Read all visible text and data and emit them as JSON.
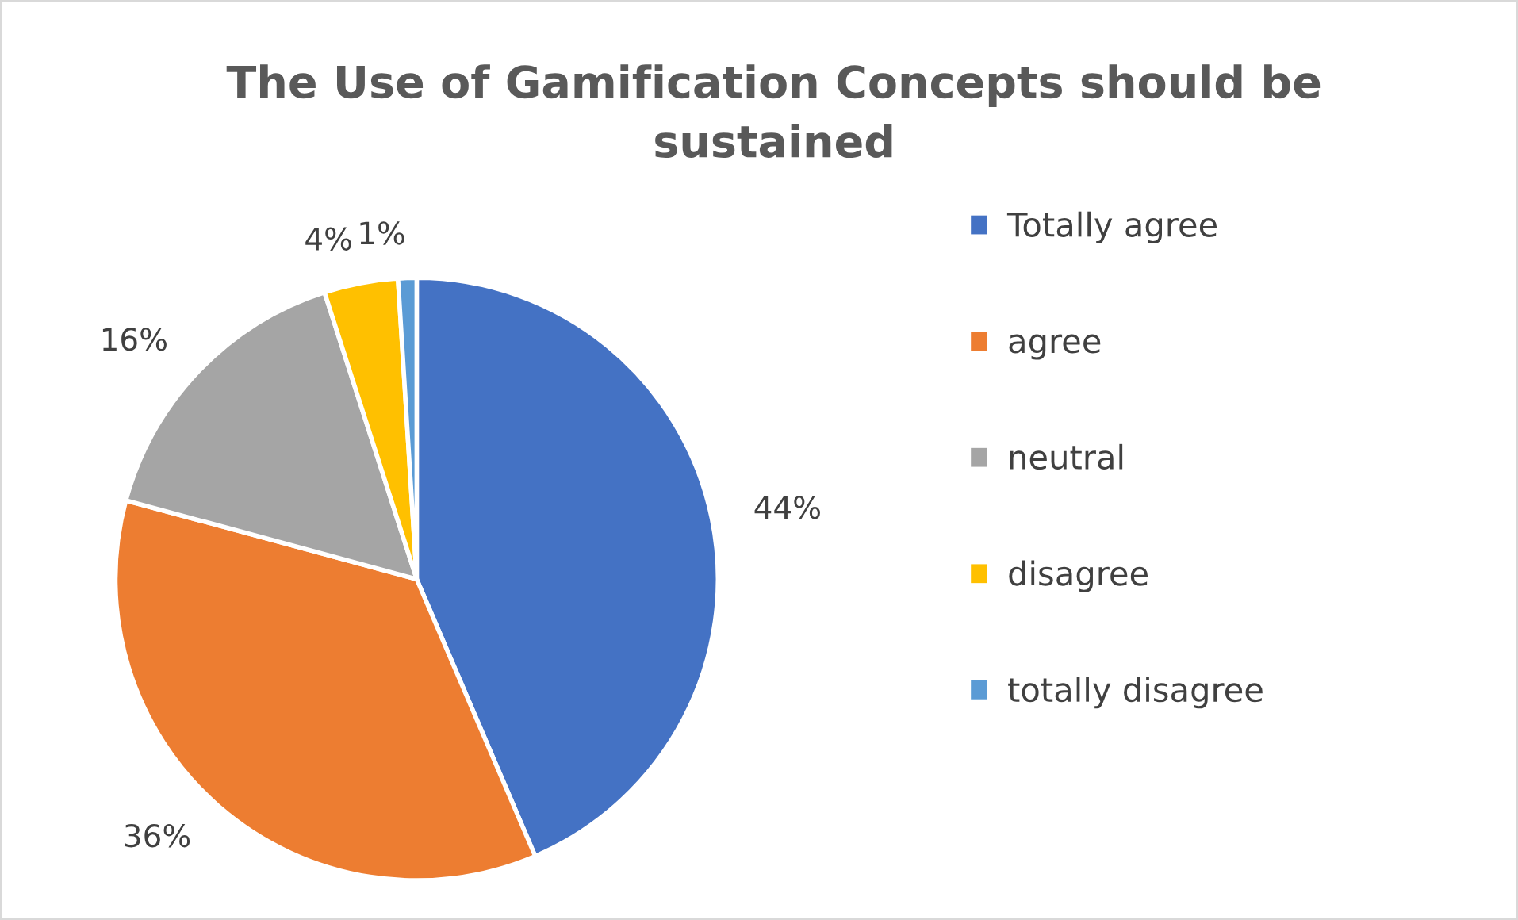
{
  "chart_data": {
    "type": "pie",
    "title": "The Use of Gamification Concepts should be\nsustained",
    "categories": [
      "Totally agree",
      "agree",
      "neutral",
      "disagree",
      "totally disagree"
    ],
    "values": [
      44,
      36,
      16,
      4,
      1
    ],
    "colors": [
      "#4472c4",
      "#ed7d31",
      "#a5a5a5",
      "#ffc000",
      "#5b9bd5"
    ],
    "value_labels": [
      "44%",
      "36%",
      "16%",
      "4%",
      "1%"
    ],
    "legend": "right"
  }
}
